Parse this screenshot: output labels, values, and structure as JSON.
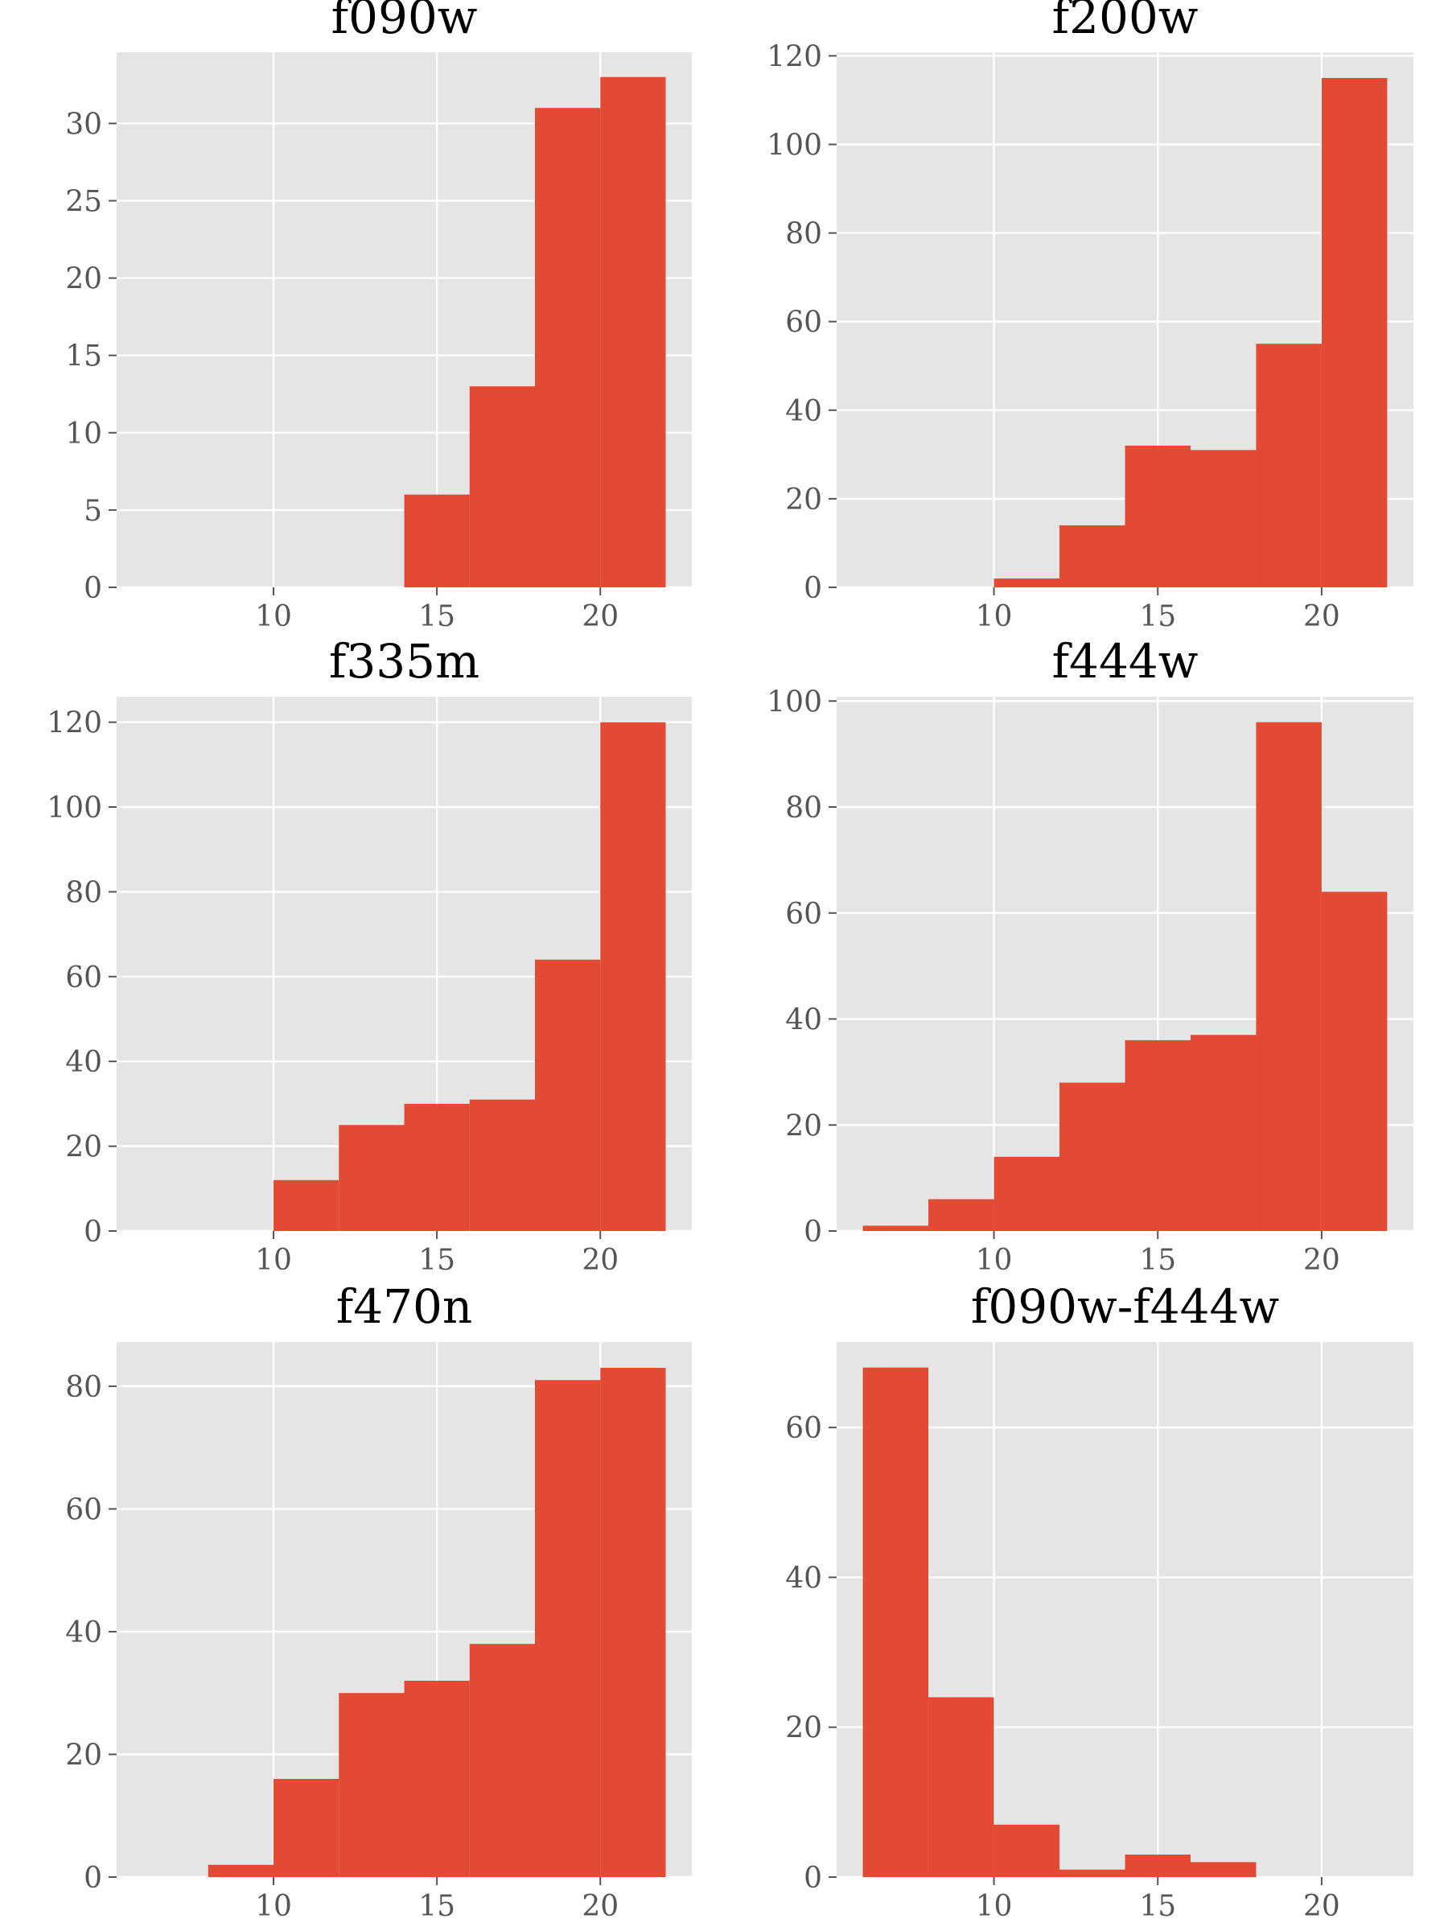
{
  "colors": {
    "panel_background": "#e5e5e5",
    "grid": "#ffffff",
    "bar": "#e24a33",
    "tick_text": "#555555",
    "title_text": "#000000"
  },
  "chart_data": [
    {
      "type": "bar",
      "title": "f090w",
      "xlim": [
        5.2,
        22.8
      ],
      "ylim": [
        0,
        34.6
      ],
      "xticks": [
        10,
        15,
        20
      ],
      "yticks": [
        0,
        5,
        10,
        15,
        20,
        25,
        30
      ],
      "bin_edges": [
        6,
        8,
        10,
        12,
        14,
        16,
        18,
        20,
        22
      ],
      "values": [
        0,
        0,
        0,
        0,
        6,
        13,
        31,
        33
      ],
      "grid": true
    },
    {
      "type": "bar",
      "title": "f200w",
      "xlim": [
        5.2,
        22.8
      ],
      "ylim": [
        0,
        120.8
      ],
      "xticks": [
        10,
        15,
        20
      ],
      "yticks": [
        0,
        20,
        40,
        60,
        80,
        100,
        120
      ],
      "bin_edges": [
        6,
        8,
        10,
        12,
        14,
        16,
        18,
        20,
        22
      ],
      "values": [
        0,
        0,
        2,
        14,
        32,
        31,
        55,
        115
      ],
      "grid": true
    },
    {
      "type": "bar",
      "title": "f335m",
      "xlim": [
        5.2,
        22.8
      ],
      "ylim": [
        0,
        126
      ],
      "xticks": [
        10,
        15,
        20
      ],
      "yticks": [
        0,
        20,
        40,
        60,
        80,
        100,
        120
      ],
      "bin_edges": [
        6,
        8,
        10,
        12,
        14,
        16,
        18,
        20,
        22
      ],
      "values": [
        0,
        0,
        12,
        25,
        30,
        31,
        64,
        120
      ],
      "grid": true
    },
    {
      "type": "bar",
      "title": "f444w",
      "xlim": [
        5.2,
        22.8
      ],
      "ylim": [
        0,
        100.8
      ],
      "xticks": [
        10,
        15,
        20
      ],
      "yticks": [
        0,
        20,
        40,
        60,
        80,
        100
      ],
      "bin_edges": [
        6,
        8,
        10,
        12,
        14,
        16,
        18,
        20,
        22
      ],
      "values": [
        1,
        6,
        14,
        28,
        36,
        37,
        96,
        64
      ],
      "grid": true
    },
    {
      "type": "bar",
      "title": "f470n",
      "xlim": [
        5.2,
        22.8
      ],
      "ylim": [
        0,
        87.2
      ],
      "xticks": [
        10,
        15,
        20
      ],
      "yticks": [
        0,
        20,
        40,
        60,
        80
      ],
      "bin_edges": [
        6,
        8,
        10,
        12,
        14,
        16,
        18,
        20,
        22
      ],
      "values": [
        0,
        2,
        16,
        30,
        32,
        38,
        81,
        83
      ],
      "grid": true
    },
    {
      "type": "bar",
      "title": "f090w-f444w",
      "xlim": [
        5.2,
        22.8
      ],
      "ylim": [
        0,
        71.4
      ],
      "xticks": [
        10,
        15,
        20
      ],
      "yticks": [
        0,
        20,
        40,
        60
      ],
      "bin_edges": [
        6,
        8,
        10,
        12,
        14,
        16,
        18,
        20,
        22
      ],
      "values": [
        68,
        24,
        7,
        1,
        3,
        2,
        0,
        0
      ],
      "grid": true
    }
  ]
}
